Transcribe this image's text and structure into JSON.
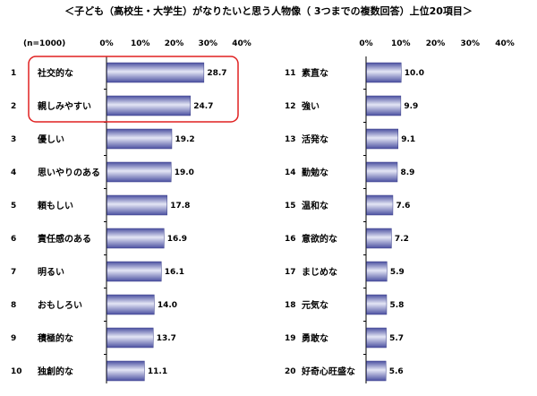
{
  "page": {
    "title": "＜子ども（高校生・大学生）がなりたいと思う人物像（ 3つまでの複数回答）上位20項目＞",
    "sample_note": "(n=1000)"
  },
  "chart_data": [
    {
      "type": "bar",
      "orientation": "horizontal",
      "xlim": [
        0,
        40
      ],
      "xticks": [
        "0%",
        "10%",
        "20%",
        "30%",
        "40%"
      ],
      "ranks": [
        "1",
        "2",
        "3",
        "4",
        "5",
        "6",
        "7",
        "8",
        "9",
        "10"
      ],
      "categories": [
        "社交的な",
        "親しみやすい",
        "優しい",
        "思いやりのある",
        "頼もしい",
        "責任感のある",
        "明るい",
        "おもしろい",
        "積極的な",
        "独創的な"
      ],
      "values": [
        28.7,
        24.7,
        19.2,
        19.0,
        17.8,
        16.9,
        16.1,
        14.0,
        13.7,
        11.1
      ],
      "value_labels": [
        "28.7",
        "24.7",
        "19.2",
        "19.0",
        "17.8",
        "16.9",
        "16.1",
        "14.0",
        "13.7",
        "11.1"
      ],
      "highlighted_ranks": [
        "1",
        "2"
      ]
    },
    {
      "type": "bar",
      "orientation": "horizontal",
      "xlim": [
        0,
        40
      ],
      "xticks": [
        "0%",
        "10%",
        "20%",
        "30%",
        "40%"
      ],
      "ranks": [
        "11",
        "12",
        "13",
        "14",
        "15",
        "16",
        "17",
        "18",
        "19",
        "20"
      ],
      "categories": [
        "素直な",
        "強い",
        "活発な",
        "勤勉な",
        "温和な",
        "意欲的な",
        "まじめな",
        "元気な",
        "勇敢な",
        "好奇心旺盛な"
      ],
      "values": [
        10.0,
        9.9,
        9.1,
        8.9,
        7.6,
        7.2,
        5.9,
        5.8,
        5.7,
        5.6
      ],
      "value_labels": [
        "10.0",
        "9.9",
        "9.1",
        "8.9",
        "7.6",
        "7.2",
        "5.9",
        "5.8",
        "5.7",
        "5.6"
      ],
      "highlighted_ranks": []
    }
  ],
  "colors": {
    "bar_dark": "#4b50a0",
    "bar_light": "#e4e6f5",
    "highlight_border": "#e02020",
    "axis": "#000000",
    "text": "#000000"
  }
}
